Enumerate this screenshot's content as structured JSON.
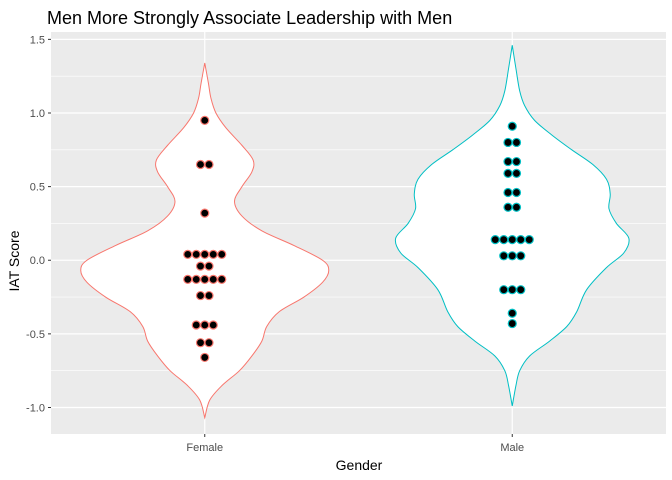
{
  "chart_data": {
    "type": "violin",
    "title": "Men More Strongly Associate Leadership with Men",
    "xlabel": "Gender",
    "ylabel": "IAT Score",
    "categories": [
      "Female",
      "Male"
    ],
    "ylim": [
      -1.18,
      1.55
    ],
    "yticks": [
      -1.0,
      -0.5,
      0.0,
      0.5,
      1.0,
      1.5
    ],
    "ytick_labels": [
      "-1.0",
      "-0.5",
      "0.0",
      "0.5",
      "1.0",
      "1.5"
    ],
    "grid": true,
    "legend": "none",
    "panel_background": "#ebebeb",
    "series": [
      {
        "category": "Female",
        "color": "#f8766d",
        "dot_color": "#000000",
        "points": [
          0.95,
          0.65,
          0.65,
          0.32,
          0.04,
          0.04,
          0.04,
          0.04,
          0.04,
          -0.04,
          -0.04,
          -0.13,
          -0.13,
          -0.13,
          -0.13,
          -0.13,
          -0.24,
          -0.24,
          -0.44,
          -0.44,
          -0.44,
          -0.56,
          -0.56,
          -0.66
        ],
        "density": [
          {
            "y": -1.07,
            "w": 0.0
          },
          {
            "y": -0.95,
            "w": 0.04
          },
          {
            "y": -0.85,
            "w": 0.14
          },
          {
            "y": -0.75,
            "w": 0.28
          },
          {
            "y": -0.65,
            "w": 0.38
          },
          {
            "y": -0.55,
            "w": 0.46
          },
          {
            "y": -0.45,
            "w": 0.5
          },
          {
            "y": -0.35,
            "w": 0.6
          },
          {
            "y": -0.25,
            "w": 0.8
          },
          {
            "y": -0.15,
            "w": 0.95
          },
          {
            "y": -0.07,
            "w": 1.0
          },
          {
            "y": 0.0,
            "w": 0.95
          },
          {
            "y": 0.1,
            "w": 0.72
          },
          {
            "y": 0.2,
            "w": 0.46
          },
          {
            "y": 0.3,
            "w": 0.3
          },
          {
            "y": 0.4,
            "w": 0.24
          },
          {
            "y": 0.5,
            "w": 0.3
          },
          {
            "y": 0.6,
            "w": 0.38
          },
          {
            "y": 0.68,
            "w": 0.39
          },
          {
            "y": 0.78,
            "w": 0.3
          },
          {
            "y": 0.9,
            "w": 0.17
          },
          {
            "y": 1.0,
            "w": 0.09
          },
          {
            "y": 1.1,
            "w": 0.05
          },
          {
            "y": 1.2,
            "w": 0.03
          },
          {
            "y": 1.34,
            "w": 0.0
          }
        ]
      },
      {
        "category": "Male",
        "color": "#00bfc4",
        "dot_color": "#000000",
        "points": [
          0.91,
          0.8,
          0.8,
          0.67,
          0.67,
          0.59,
          0.59,
          0.46,
          0.46,
          0.36,
          0.36,
          0.14,
          0.14,
          0.14,
          0.14,
          0.14,
          0.03,
          0.03,
          0.03,
          -0.2,
          -0.2,
          -0.2,
          -0.36,
          -0.43
        ],
        "density": [
          {
            "y": -0.99,
            "w": 0.0
          },
          {
            "y": -0.85,
            "w": 0.03
          },
          {
            "y": -0.75,
            "w": 0.06
          },
          {
            "y": -0.65,
            "w": 0.14
          },
          {
            "y": -0.55,
            "w": 0.3
          },
          {
            "y": -0.45,
            "w": 0.44
          },
          {
            "y": -0.35,
            "w": 0.52
          },
          {
            "y": -0.2,
            "w": 0.6
          },
          {
            "y": -0.05,
            "w": 0.76
          },
          {
            "y": 0.05,
            "w": 0.9
          },
          {
            "y": 0.15,
            "w": 0.94
          },
          {
            "y": 0.25,
            "w": 0.84
          },
          {
            "y": 0.35,
            "w": 0.78
          },
          {
            "y": 0.45,
            "w": 0.79
          },
          {
            "y": 0.55,
            "w": 0.76
          },
          {
            "y": 0.65,
            "w": 0.65
          },
          {
            "y": 0.75,
            "w": 0.48
          },
          {
            "y": 0.85,
            "w": 0.32
          },
          {
            "y": 0.95,
            "w": 0.18
          },
          {
            "y": 1.05,
            "w": 0.1
          },
          {
            "y": 1.15,
            "w": 0.06
          },
          {
            "y": 1.3,
            "w": 0.03
          },
          {
            "y": 1.46,
            "w": 0.0
          }
        ]
      }
    ]
  }
}
